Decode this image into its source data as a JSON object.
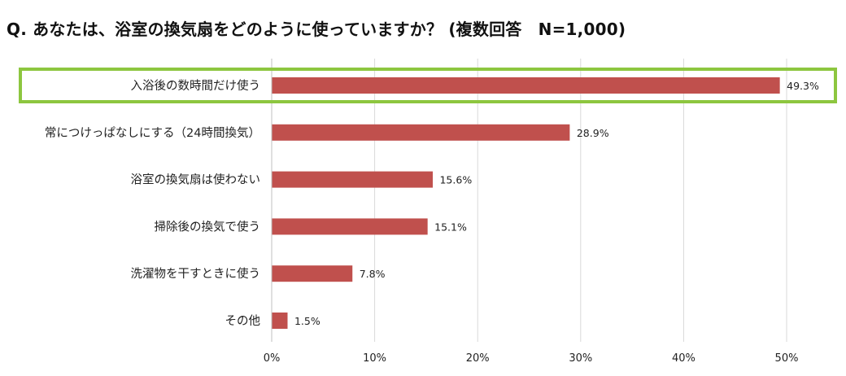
{
  "title": "Q. あなたは、浴室の換気扇をどのように使っていますか？ (複数回答　N=1,000)",
  "colors": {
    "bar": "#c0504d",
    "highlight": "#8dc63f",
    "grid": "#d9d9d9",
    "axis": "#bfbfbf"
  },
  "chart_data": {
    "type": "bar",
    "orientation": "horizontal",
    "title": "Q. あなたは、浴室の換気扇をどのように使っていますか？ (複数回答　N=1,000)",
    "categories": [
      "入浴後の数時間だけ使う",
      "常につけっぱなしにする（24時間換気）",
      "浴室の換気扇は使わない",
      "掃除後の換気で使う",
      "洗濯物を干すときに使う",
      "その他"
    ],
    "values": [
      49.3,
      28.9,
      15.6,
      15.1,
      7.8,
      1.5
    ],
    "value_labels": [
      "49.3%",
      "28.9%",
      "15.6%",
      "15.1%",
      "7.8%",
      "1.5%"
    ],
    "xlim": [
      0,
      50
    ],
    "ticks": [
      0,
      10,
      20,
      30,
      40,
      50
    ],
    "tick_labels": [
      "0%",
      "10%",
      "20%",
      "30%",
      "40%",
      "50%"
    ],
    "grid": true,
    "legend": "none",
    "highlighted_category": "入浴後の数時間だけ使う"
  }
}
